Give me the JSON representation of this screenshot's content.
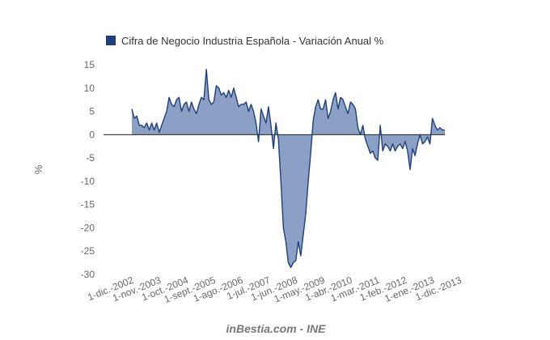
{
  "chart_data": {
    "type": "area",
    "legend": "Cifra de Negocio Industria Española - Variación Anual %",
    "ylabel": "%",
    "ylim": [
      -30,
      15
    ],
    "yticks": [
      15,
      10,
      5,
      0,
      -5,
      -10,
      -15,
      -20,
      -25,
      -30
    ],
    "xlabels": [
      "1-dic.-2002",
      "1-nov.-2003",
      "1-oct.-2004",
      "1-sept.-2005",
      "1-ago.-2006",
      "1-jul.-2007",
      "1-jun.-2008",
      "1-may.-2009",
      "1-abr.-2010",
      "1-mar.-2011",
      "1-feb.-2012",
      "1-ene.-2013",
      "1-dic.-2013"
    ],
    "xlabel_index": [
      0,
      11,
      22,
      33,
      44,
      55,
      66,
      77,
      88,
      99,
      110,
      121,
      132
    ],
    "grid": false,
    "legend_position": "top-left",
    "series": [
      {
        "color": "#1f3f7a",
        "fill": "#8c9fc4",
        "values": [
          5.5,
          3.5,
          4.0,
          2.0,
          2.0,
          1.5,
          2.5,
          1.0,
          2.5,
          1.0,
          2.5,
          0.5,
          2.0,
          3.5,
          5.0,
          8.0,
          6.5,
          6.0,
          7.5,
          8.0,
          5.0,
          6.5,
          7.0,
          5.0,
          7.0,
          5.5,
          4.5,
          6.5,
          8.0,
          7.5,
          14.0,
          7.5,
          6.5,
          7.0,
          10.5,
          10.0,
          8.5,
          9.0,
          8.0,
          9.5,
          8.0,
          10.0,
          8.0,
          6.0,
          6.5,
          6.5,
          7.0,
          5.0,
          6.5,
          5.0,
          2.5,
          -1.5,
          5.5,
          4.0,
          2.5,
          6.0,
          2.0,
          -3.0,
          2.5,
          -1.0,
          -10.0,
          -20.0,
          -23.0,
          -27.5,
          -28.5,
          -27.5,
          -27.0,
          -23.0,
          -26.0,
          -21.5,
          -17.0,
          -10.0,
          -4.0,
          3.0,
          6.0,
          7.5,
          5.5,
          5.5,
          7.5,
          3.5,
          5.0,
          7.5,
          9.0,
          5.5,
          8.0,
          7.5,
          6.0,
          4.5,
          7.0,
          6.5,
          5.5,
          1.5,
          0.0,
          2.0,
          -1.0,
          -2.5,
          -4.0,
          -3.5,
          -5.0,
          -5.5,
          2.0,
          -3.5,
          -2.0,
          -2.5,
          -3.5,
          -2.0,
          -3.5,
          -2.5,
          -2.0,
          -3.0,
          -1.5,
          -3.5,
          -7.5,
          -3.0,
          -4.5,
          -2.0,
          0.0,
          -2.0,
          -1.5,
          -0.5,
          -2.0,
          3.5,
          2.0,
          1.0,
          1.5,
          1.0,
          1.0
        ]
      }
    ]
  },
  "footer": "inBestia.com - INE"
}
